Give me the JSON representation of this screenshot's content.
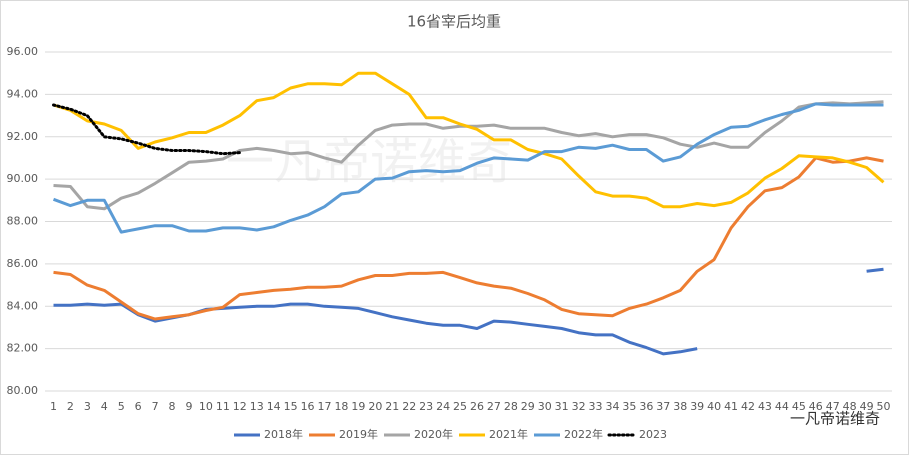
{
  "chart_data": {
    "type": "line",
    "title": "16省宰后均重",
    "watermark": "一凡帝诺维奇",
    "categories": [
      "1",
      "2",
      "3",
      "4",
      "5",
      "6",
      "7",
      "8",
      "9",
      "10",
      "11",
      "12",
      "13",
      "14",
      "15",
      "16",
      "17",
      "18",
      "19",
      "20",
      "21",
      "22",
      "23",
      "24",
      "25",
      "26",
      "27",
      "28",
      "29",
      "30",
      "31",
      "32",
      "33",
      "34",
      "35",
      "36",
      "37",
      "38",
      "39",
      "40",
      "41",
      "42",
      "43",
      "44",
      "45",
      "46",
      "47",
      "48",
      "49",
      "50"
    ],
    "ylim": [
      80,
      96
    ],
    "yticks": [
      {
        "value": 80,
        "label": "80.00"
      },
      {
        "value": 82,
        "label": "82.00"
      },
      {
        "value": 84,
        "label": "84.00"
      },
      {
        "value": 86,
        "label": "86.00"
      },
      {
        "value": 88,
        "label": "88.00"
      },
      {
        "value": 90,
        "label": "90.00"
      },
      {
        "value": 92,
        "label": "92.00"
      },
      {
        "value": 94,
        "label": "94.00"
      },
      {
        "value": 96,
        "label": "96.00"
      }
    ],
    "grid": true,
    "legend": "bottom",
    "series": [
      {
        "name": "2018年",
        "color": "#4472c4",
        "values": [
          84.05,
          84.05,
          84.1,
          84.05,
          84.1,
          83.6,
          83.3,
          83.45,
          83.6,
          83.85,
          83.9,
          83.95,
          84.0,
          84.0,
          84.1,
          84.1,
          84.0,
          83.95,
          83.9,
          83.7,
          83.5,
          83.35,
          83.2,
          83.1,
          83.1,
          82.95,
          83.3,
          83.25,
          83.15,
          83.05,
          82.95,
          82.75,
          82.65,
          82.65,
          82.3,
          82.05,
          81.75,
          81.85,
          82.0,
          null,
          null,
          null,
          null,
          null,
          null,
          null,
          null,
          null,
          85.65,
          85.75
        ]
      },
      {
        "name": "2019年",
        "color": "#ed7d31",
        "values": [
          85.6,
          85.5,
          85.0,
          84.75,
          84.2,
          83.65,
          83.4,
          83.5,
          83.6,
          83.8,
          83.95,
          84.55,
          84.65,
          84.75,
          84.8,
          84.9,
          84.9,
          84.95,
          85.25,
          85.45,
          85.45,
          85.55,
          85.55,
          85.6,
          85.35,
          85.1,
          84.95,
          84.85,
          84.6,
          84.3,
          83.85,
          83.65,
          83.6,
          83.55,
          83.9,
          84.1,
          84.4,
          84.75,
          85.65,
          86.2,
          87.7,
          88.7,
          89.45,
          89.6,
          90.1,
          91.0,
          90.8,
          90.85,
          91.0,
          90.85
        ]
      },
      {
        "name": "2020年",
        "color": "#a5a5a5",
        "values": [
          89.7,
          89.65,
          88.7,
          88.6,
          89.1,
          89.35,
          89.8,
          90.3,
          90.8,
          90.85,
          90.95,
          91.35,
          91.45,
          91.35,
          91.2,
          91.25,
          91.0,
          90.8,
          91.6,
          92.3,
          92.55,
          92.6,
          92.6,
          92.4,
          92.5,
          92.5,
          92.55,
          92.4,
          92.4,
          92.4,
          92.2,
          92.05,
          92.15,
          92.0,
          92.1,
          92.1,
          91.95,
          91.65,
          91.5,
          91.7,
          91.5,
          91.5,
          92.2,
          92.75,
          93.4,
          93.55,
          93.6,
          93.55,
          93.6,
          93.65
        ]
      },
      {
        "name": "2021年",
        "color": "#ffc000",
        "values": [
          93.5,
          93.25,
          92.75,
          92.6,
          92.3,
          91.45,
          91.75,
          91.95,
          92.2,
          92.2,
          92.55,
          93.0,
          93.7,
          93.85,
          94.3,
          94.5,
          94.5,
          94.45,
          95.0,
          95.0,
          94.5,
          94.0,
          92.9,
          92.9,
          92.6,
          92.35,
          91.85,
          91.85,
          91.4,
          91.2,
          90.95,
          90.15,
          89.4,
          89.2,
          89.2,
          89.1,
          88.7,
          88.7,
          88.85,
          88.75,
          88.9,
          89.35,
          90.05,
          90.5,
          91.1,
          91.05,
          91.0,
          90.8,
          90.55,
          89.85
        ]
      },
      {
        "name": "2022年",
        "color": "#5b9bd5",
        "values": [
          89.05,
          88.75,
          89.0,
          89.0,
          87.5,
          87.65,
          87.8,
          87.8,
          87.55,
          87.55,
          87.7,
          87.7,
          87.6,
          87.75,
          88.05,
          88.3,
          88.7,
          89.3,
          89.4,
          90.0,
          90.05,
          90.35,
          90.4,
          90.35,
          90.4,
          90.75,
          91.0,
          90.95,
          90.9,
          91.3,
          91.3,
          91.5,
          91.45,
          91.6,
          91.4,
          91.4,
          90.85,
          91.05,
          91.65,
          92.1,
          92.45,
          92.5,
          92.8,
          93.05,
          93.25,
          93.55,
          93.5,
          93.5,
          93.5,
          93.5
        ]
      },
      {
        "name": "2023",
        "color": "#000000",
        "dash": "dotted",
        "values": [
          93.5,
          93.3,
          93.0,
          92.0,
          91.9,
          91.7,
          91.45,
          91.35,
          91.35,
          91.3,
          91.2,
          91.25,
          null,
          null,
          null,
          null,
          null,
          null,
          null,
          null,
          null,
          null,
          null,
          null,
          null,
          null,
          null,
          null,
          null,
          null,
          null,
          null,
          null,
          null,
          null,
          null,
          null,
          null,
          null,
          null,
          null,
          null,
          null,
          null,
          null,
          null,
          null,
          null,
          null,
          null
        ]
      }
    ]
  }
}
